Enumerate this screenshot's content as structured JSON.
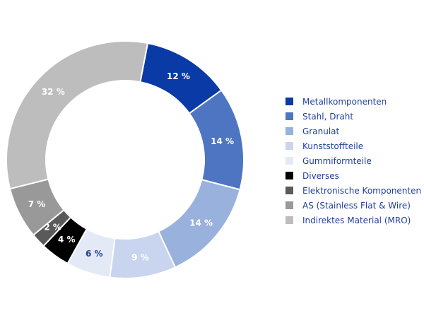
{
  "chart_data": {
    "type": "pie",
    "donut": true,
    "title": "",
    "legend_position": "right",
    "categories": [
      "Metallkomponenten",
      "Stahl, Draht",
      "Granulat",
      "Kunststoffteile",
      "Gummiformteile",
      "Diverses",
      "Elektronische Komponenten",
      "AS (Stainless Flat & Wire)",
      "Indirektes Material (MRO)"
    ],
    "values": [
      12,
      14,
      14,
      9,
      6,
      4,
      2,
      7,
      32
    ],
    "unit": "%",
    "data_labels": [
      "12 %",
      "14 %",
      "14 %",
      "9 %",
      "6 %",
      "4 %",
      "2 %",
      "7 %",
      "32 %"
    ],
    "colors": [
      "#0a3aa6",
      "#4e75c1",
      "#98b1dd",
      "#c9d5ee",
      "#e3eaf6",
      "#000000",
      "#5a5a5a",
      "#999999",
      "#bdbdbd"
    ],
    "label_colors": [
      "#ffffff",
      "#ffffff",
      "#ffffff",
      "#ffffff",
      "#22409a",
      "#ffffff",
      "#ffffff",
      "#ffffff",
      "#ffffff"
    ]
  }
}
